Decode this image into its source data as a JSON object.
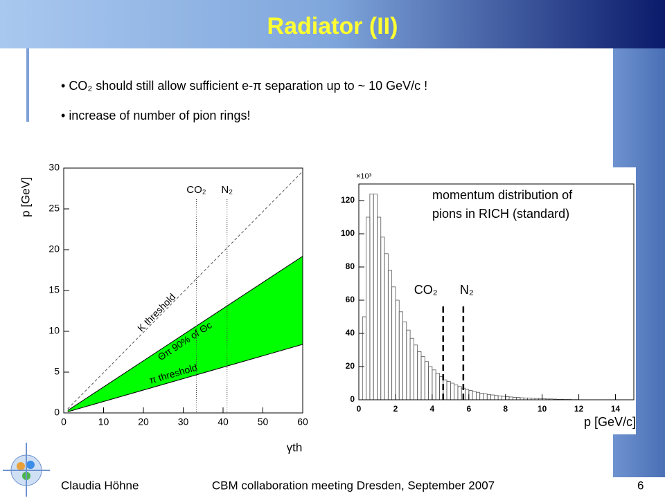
{
  "slide": {
    "title": "Radiator (II)",
    "bullets": [
      "CO₂ should still allow sufficient e-π separation up to ~ 10 GeV/c !",
      "increase of number of pion rings!"
    ],
    "footer": {
      "author": "Claudia Höhne",
      "event": "CBM collaboration meeting Dresden, September 2007",
      "page": "6"
    }
  },
  "chart_data": [
    {
      "type": "line",
      "ylabel": "p [GeV]",
      "xlabel": "γth",
      "xlim": [
        0,
        60
      ],
      "xticks": [
        0,
        10,
        20,
        30,
        40,
        50,
        60
      ],
      "ylim": [
        0,
        30
      ],
      "yticks": [
        0,
        5,
        10,
        15,
        20,
        25,
        30
      ],
      "x": [
        1,
        60
      ],
      "series": [
        {
          "name": "K threshold",
          "color": "#555555",
          "dashed": true,
          "values": [
            0.5,
            29.6
          ]
        },
        {
          "name": "π threshold",
          "color": "#000000",
          "values": [
            0.14,
            8.4
          ]
        },
        {
          "name": "Θπ 90% of Θc",
          "color": "#000000",
          "values": [
            0.3,
            19.2
          ]
        }
      ],
      "fill_between": {
        "series": [
          1,
          2
        ],
        "color": "#00ff00"
      },
      "vlines": [
        {
          "x": 33.3,
          "label": "CO₂"
        },
        {
          "x": 41,
          "label": "N₂"
        }
      ]
    },
    {
      "type": "histogram",
      "xlabel": "p [GeV/c]",
      "ylabel": "×10³",
      "annotation": [
        "momentum distribution of",
        "pions in RICH (standard)"
      ],
      "xlim": [
        0,
        15
      ],
      "xticks": [
        0,
        2,
        4,
        6,
        8,
        10,
        12,
        14
      ],
      "ylim": [
        0,
        130
      ],
      "yticks": [
        0,
        20,
        40,
        60,
        80,
        100,
        120
      ],
      "color": "#555555",
      "bins": [
        0,
        0.2,
        0.4,
        0.6,
        0.8,
        1,
        1.2,
        1.4,
        1.6,
        1.8,
        2,
        2.2,
        2.4,
        2.6,
        2.8,
        3,
        3.2,
        3.4,
        3.6,
        3.8,
        4,
        4.2,
        4.4,
        4.6,
        4.8,
        5,
        5.2,
        5.4,
        5.6,
        5.8,
        6,
        6.2,
        6.4,
        6.6,
        6.8,
        7,
        7.2,
        7.4,
        7.6,
        7.8,
        8,
        8.2,
        8.4,
        8.6,
        8.8,
        9,
        9.2,
        9.4,
        9.6,
        9.8,
        10,
        10.2,
        10.4,
        10.6,
        10.8,
        11,
        11.2,
        11.4,
        11.6,
        11.8,
        12
      ],
      "values": [
        0,
        50,
        110,
        124,
        124,
        110,
        98,
        88,
        78,
        68,
        60,
        53,
        47,
        42,
        37,
        33,
        29,
        26,
        23,
        20,
        18,
        16,
        14,
        12,
        11,
        10,
        9,
        8,
        7,
        6.3,
        5.6,
        5,
        4.5,
        4,
        3.6,
        3.2,
        2.9,
        2.6,
        2.3,
        2.1,
        1.9,
        1.7,
        1.5,
        1.4,
        1.2,
        1.1,
        1,
        0.9,
        0.8,
        0.7,
        0.6,
        0.5,
        0.5,
        0.4,
        0.3,
        0.3,
        0.2,
        0.2,
        0.1,
        0.1
      ],
      "vlines": [
        {
          "x": 4.6,
          "label": "CO₂"
        },
        {
          "x": 5.7,
          "label": "N₂"
        }
      ]
    }
  ]
}
